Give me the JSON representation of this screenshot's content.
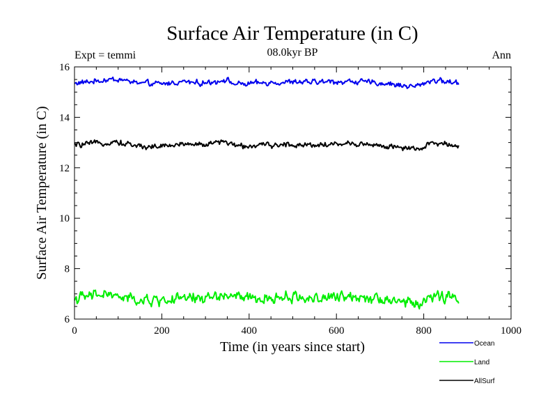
{
  "chart_data": {
    "type": "line",
    "title": "Surface Air Temperature (in C)",
    "subtitle": "08.0kyr BP",
    "left_note": "Expt = temmi",
    "right_note": "Ann",
    "xlabel": "Time (in years since start)",
    "ylabel": "Surface Air Temperature (in C)",
    "xlim": [
      0,
      1000
    ],
    "ylim": [
      6,
      16
    ],
    "xticks": [
      0,
      200,
      400,
      600,
      800,
      1000
    ],
    "yticks": [
      6,
      8,
      10,
      12,
      14,
      16
    ],
    "x_range": [
      0,
      880
    ],
    "legend_position": "bottom-right",
    "series": [
      {
        "name": "Ocean",
        "color": "#0000ee",
        "mean": 15.38,
        "noise": 0.07,
        "anchors": [
          [
            0,
            15.35
          ],
          [
            60,
            15.45
          ],
          [
            95,
            15.52
          ],
          [
            150,
            15.35
          ],
          [
            200,
            15.32
          ],
          [
            250,
            15.42
          ],
          [
            300,
            15.35
          ],
          [
            345,
            15.5
          ],
          [
            370,
            15.3
          ],
          [
            450,
            15.38
          ],
          [
            550,
            15.4
          ],
          [
            650,
            15.42
          ],
          [
            700,
            15.35
          ],
          [
            780,
            15.22
          ],
          [
            820,
            15.48
          ],
          [
            880,
            15.35
          ]
        ]
      },
      {
        "name": "Land",
        "color": "#00ee00",
        "mean": 6.82,
        "noise": 0.14,
        "anchors": [
          [
            0,
            6.8
          ],
          [
            70,
            7.0
          ],
          [
            110,
            6.85
          ],
          [
            160,
            6.7
          ],
          [
            220,
            6.78
          ],
          [
            300,
            6.85
          ],
          [
            350,
            6.95
          ],
          [
            420,
            6.75
          ],
          [
            480,
            6.88
          ],
          [
            560,
            6.82
          ],
          [
            640,
            6.9
          ],
          [
            700,
            6.85
          ],
          [
            790,
            6.55
          ],
          [
            820,
            6.95
          ],
          [
            880,
            6.8
          ]
        ]
      },
      {
        "name": "AllSurf",
        "color": "#000000",
        "mean": 12.9,
        "noise": 0.07,
        "anchors": [
          [
            0,
            12.9
          ],
          [
            60,
            12.98
          ],
          [
            95,
            13.02
          ],
          [
            150,
            12.85
          ],
          [
            200,
            12.85
          ],
          [
            250,
            12.95
          ],
          [
            300,
            12.92
          ],
          [
            345,
            13.05
          ],
          [
            370,
            12.85
          ],
          [
            450,
            12.9
          ],
          [
            550,
            12.92
          ],
          [
            650,
            12.95
          ],
          [
            700,
            12.88
          ],
          [
            790,
            12.7
          ],
          [
            820,
            13.0
          ],
          [
            880,
            12.88
          ]
        ]
      }
    ]
  }
}
